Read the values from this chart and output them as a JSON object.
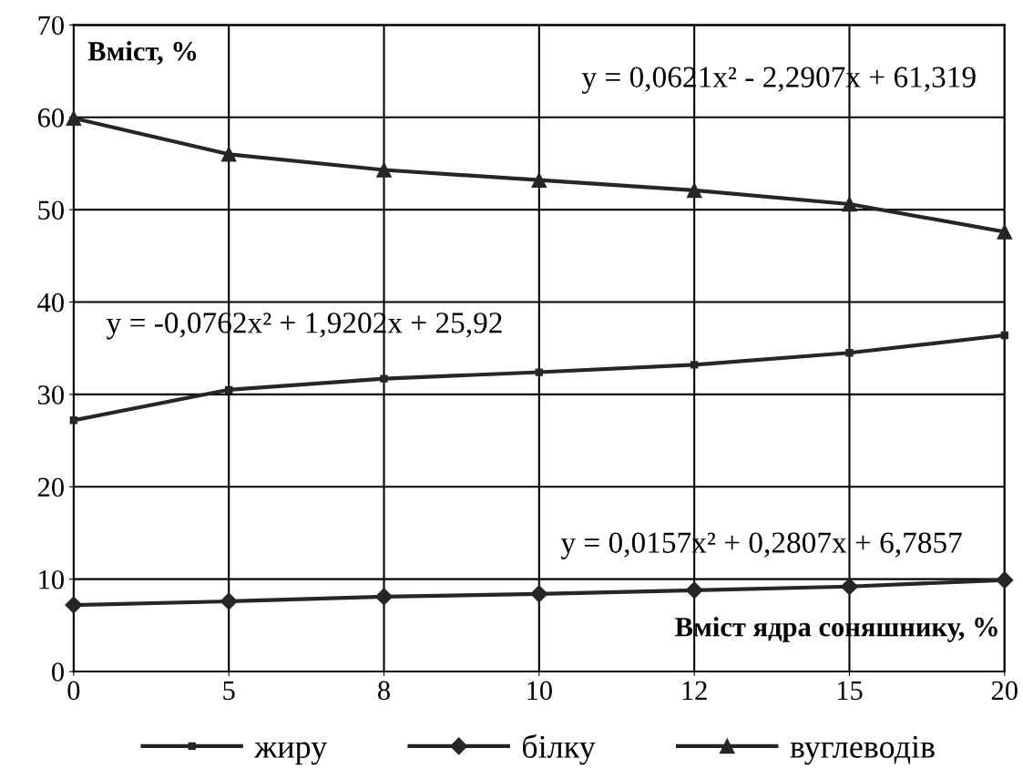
{
  "chart_data": {
    "type": "line",
    "xlabel": "Вміст ядра соняшнику, %",
    "ylabel": "Вміст, %",
    "categories": [
      "0",
      "5",
      "8",
      "10",
      "12",
      "15",
      "20"
    ],
    "series": [
      {
        "name": "жиру",
        "color": "#262626",
        "marker": "square",
        "values": [
          27.2,
          30.5,
          31.7,
          32.4,
          33.2,
          34.5,
          36.4
        ]
      },
      {
        "name": "білку",
        "color": "#262626",
        "marker": "diamond",
        "values": [
          7.2,
          7.6,
          8.1,
          8.4,
          8.8,
          9.2,
          9.9
        ]
      },
      {
        "name": "вуглеводів",
        "color": "#262626",
        "marker": "triangle",
        "values": [
          59.9,
          56.0,
          54.3,
          53.2,
          52.1,
          50.6,
          47.6
        ]
      }
    ],
    "annotations": [
      "y = 0,0621x² - 2,2907x + 61,319",
      "y = -0,0762x² + 1,9202x + 25,92",
      "y = 0,0157x² + 0,2807x + 6,7857"
    ],
    "ylim": [
      0,
      70
    ],
    "yticks": [
      0,
      10,
      20,
      30,
      40,
      50,
      60,
      70
    ],
    "grid": true,
    "legend": "bottom",
    "line_style": "solid"
  }
}
